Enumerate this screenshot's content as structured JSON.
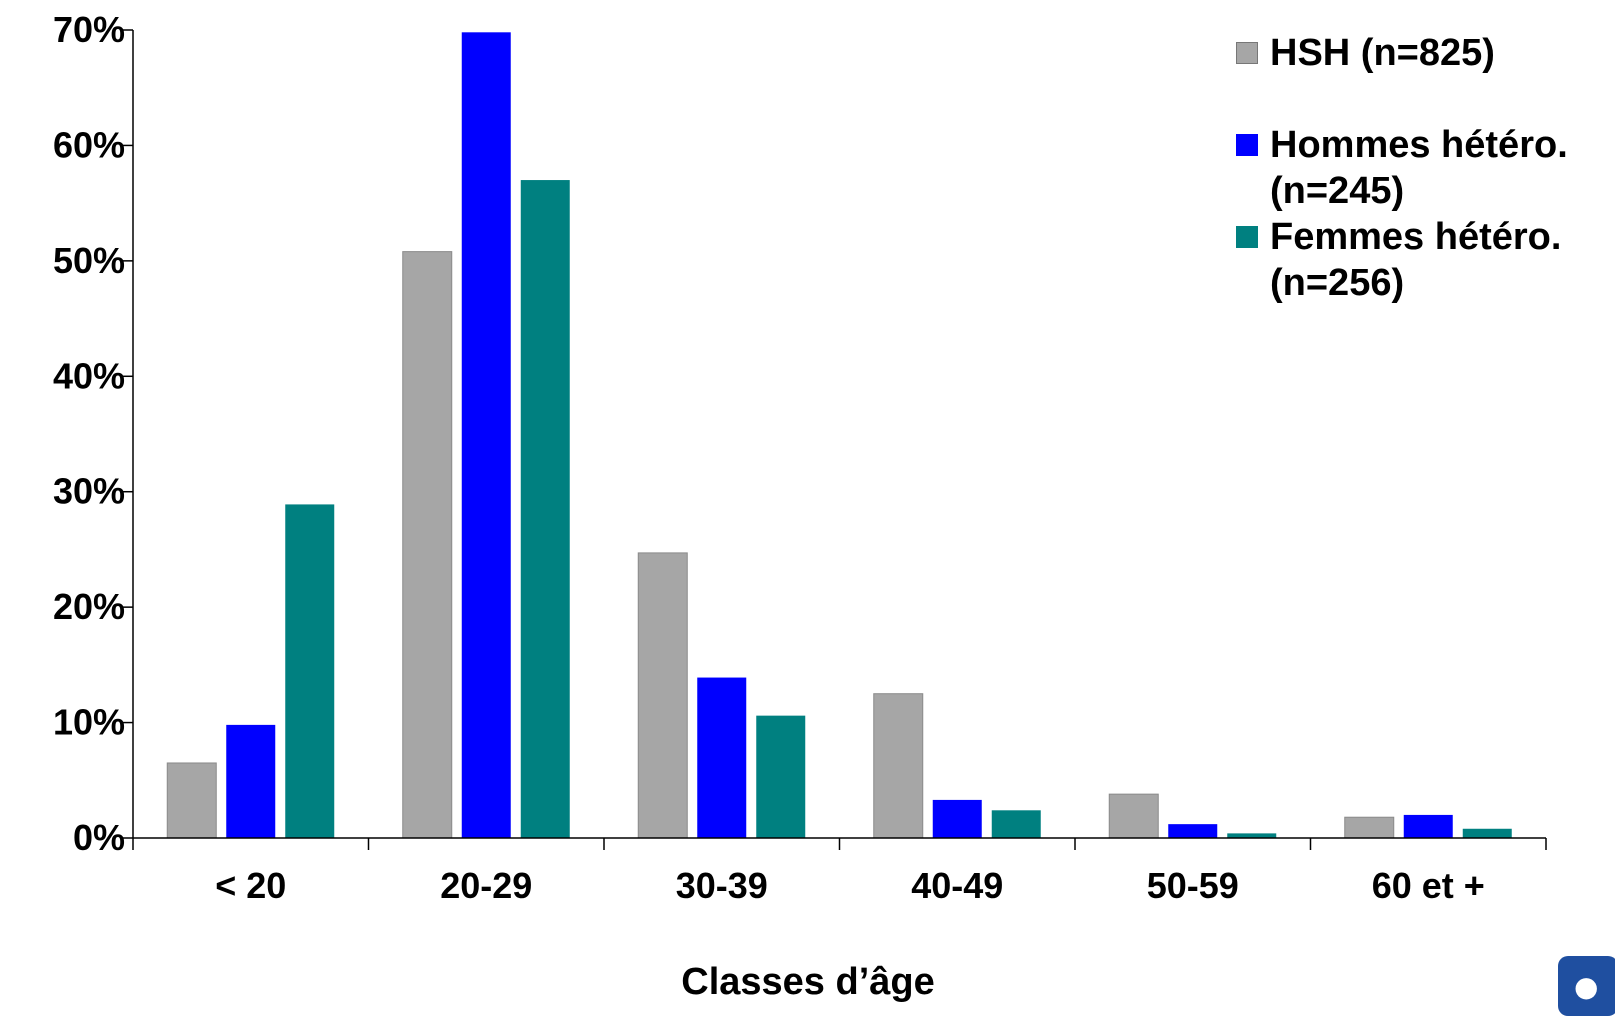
{
  "chart_data": {
    "type": "bar",
    "categories": [
      "< 20",
      "20-29",
      "30-39",
      "40-49",
      "50-59",
      "60 et +"
    ],
    "series": [
      {
        "name": "HSH (n=825)",
        "color": "#a6a6a6",
        "values": [
          6.5,
          50.8,
          24.7,
          12.5,
          3.8,
          1.8
        ]
      },
      {
        "name": "Hommes hétéro. (n=245)",
        "color": "#0000ff",
        "values": [
          9.8,
          69.8,
          13.9,
          3.3,
          1.2,
          2.0
        ]
      },
      {
        "name": "Femmes hétéro. (n=256)",
        "color": "#008080",
        "values": [
          28.9,
          57.0,
          10.6,
          2.4,
          0.4,
          0.8
        ]
      }
    ],
    "xlabel": "Classes d’âge",
    "ylabel": "",
    "ylim": [
      0,
      70
    ],
    "yticks": [
      0,
      10,
      20,
      30,
      40,
      50,
      60,
      70
    ],
    "ytick_labels": [
      "0%",
      "10%",
      "20%",
      "30%",
      "40%",
      "50%",
      "60%",
      "70%"
    ],
    "grid": false,
    "legend_position": "top-right"
  },
  "logo": {
    "name": "logo-icon",
    "color": "#1f4fa0"
  }
}
